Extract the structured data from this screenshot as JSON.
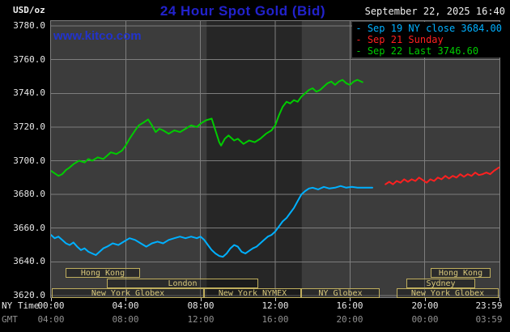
{
  "header": {
    "unit_label": "USD/oz",
    "title": "24 Hour Spot Gold (Bid)",
    "datetime": "September 22, 2025 16:40",
    "watermark": "www.kitco.com"
  },
  "legend": [
    {
      "label": "Sep 19 NY close 3684.00",
      "color": "#00b0ff"
    },
    {
      "label": "Sep 21 Sunday",
      "color": "#ff2020"
    },
    {
      "label": "Sep 22 Last 3746.60",
      "color": "#00cc00"
    }
  ],
  "axes": {
    "ny_label": "NY Time",
    "gmt_label": "GMT",
    "x_ticks": [
      {
        "hour": 0,
        "ny": "00:00",
        "gmt": "04:00"
      },
      {
        "hour": 4,
        "ny": "04:00",
        "gmt": "08:00"
      },
      {
        "hour": 8,
        "ny": "08:00",
        "gmt": "12:00"
      },
      {
        "hour": 12,
        "ny": "12:00",
        "gmt": "16:00"
      },
      {
        "hour": 16,
        "ny": "16:00",
        "gmt": "20:00"
      },
      {
        "hour": 20,
        "ny": "20:00",
        "gmt": "00:00"
      },
      {
        "hour": 23.983,
        "ny": "23:59",
        "gmt": "03:59"
      }
    ]
  },
  "sessions": [
    {
      "row": 1,
      "start": 0.8,
      "end": 4.8,
      "label": "Hong Kong"
    },
    {
      "row": 1,
      "start": 20.3,
      "end": 23.5,
      "label": "Hong Kong"
    },
    {
      "row": 2,
      "start": 3.0,
      "end": 11.1,
      "label": "London"
    },
    {
      "row": 2,
      "start": 19.0,
      "end": 22.7,
      "label": "Sydney"
    },
    {
      "row": 3,
      "start": 0.05,
      "end": 8.2,
      "label": "New York Globex"
    },
    {
      "row": 3,
      "start": 8.2,
      "end": 13.4,
      "label": "New York NYMEX"
    },
    {
      "row": 3,
      "start": 13.4,
      "end": 17.6,
      "label": "NY Globex"
    },
    {
      "row": 3,
      "start": 18.5,
      "end": 23.95,
      "label": "New York Globex"
    }
  ],
  "chart_data": {
    "type": "line",
    "title": "24 Hour Spot Gold (Bid)",
    "ylabel": "USD/oz",
    "xlabel": "NY Time (hours)",
    "ylim": [
      3620,
      3780
    ],
    "xlim": [
      0,
      24
    ],
    "y_ticks": [
      3780,
      3760,
      3740,
      3720,
      3700,
      3680,
      3660,
      3640,
      3620
    ],
    "nymex_band_hours": [
      8.33,
      13.42
    ],
    "grid": true,
    "legend_position": "top-right",
    "series": [
      {
        "name": "Sep 19 NY close",
        "color": "#00b0ff",
        "points": [
          [
            0,
            3656
          ],
          [
            0.2,
            3654
          ],
          [
            0.4,
            3655
          ],
          [
            0.6,
            3653
          ],
          [
            0.8,
            3651
          ],
          [
            1,
            3650
          ],
          [
            1.2,
            3651.5
          ],
          [
            1.4,
            3649
          ],
          [
            1.6,
            3647
          ],
          [
            1.8,
            3648
          ],
          [
            2,
            3646
          ],
          [
            2.2,
            3645
          ],
          [
            2.4,
            3644
          ],
          [
            2.6,
            3646
          ],
          [
            2.8,
            3648
          ],
          [
            3,
            3649
          ],
          [
            3.3,
            3651
          ],
          [
            3.6,
            3650
          ],
          [
            3.9,
            3652
          ],
          [
            4.2,
            3654
          ],
          [
            4.5,
            3653
          ],
          [
            4.8,
            3651
          ],
          [
            5.1,
            3649
          ],
          [
            5.4,
            3651
          ],
          [
            5.7,
            3652
          ],
          [
            6,
            3651
          ],
          [
            6.3,
            3653
          ],
          [
            6.6,
            3654
          ],
          [
            6.9,
            3655
          ],
          [
            7.2,
            3654
          ],
          [
            7.5,
            3655
          ],
          [
            7.8,
            3654
          ],
          [
            8,
            3655
          ],
          [
            8.2,
            3653
          ],
          [
            8.4,
            3650
          ],
          [
            8.6,
            3647
          ],
          [
            8.8,
            3645
          ],
          [
            9,
            3643.5
          ],
          [
            9.2,
            3643
          ],
          [
            9.4,
            3645
          ],
          [
            9.6,
            3648
          ],
          [
            9.8,
            3650
          ],
          [
            10,
            3649
          ],
          [
            10.2,
            3646
          ],
          [
            10.4,
            3645
          ],
          [
            10.6,
            3646.5
          ],
          [
            10.8,
            3648
          ],
          [
            11,
            3649
          ],
          [
            11.2,
            3651
          ],
          [
            11.4,
            3653
          ],
          [
            11.6,
            3655
          ],
          [
            11.8,
            3656
          ],
          [
            12,
            3658
          ],
          [
            12.2,
            3661
          ],
          [
            12.4,
            3664
          ],
          [
            12.6,
            3666
          ],
          [
            12.8,
            3669
          ],
          [
            13,
            3672
          ],
          [
            13.2,
            3676
          ],
          [
            13.4,
            3680
          ],
          [
            13.6,
            3682
          ],
          [
            13.8,
            3683.5
          ],
          [
            14,
            3684
          ],
          [
            14.3,
            3683
          ],
          [
            14.6,
            3684.5
          ],
          [
            14.9,
            3683.5
          ],
          [
            15.2,
            3684
          ],
          [
            15.5,
            3685
          ],
          [
            15.8,
            3684
          ],
          [
            16.1,
            3684.5
          ],
          [
            16.4,
            3684
          ],
          [
            16.7,
            3684
          ],
          [
            17.2,
            3684
          ]
        ]
      },
      {
        "name": "Sep 21 Sunday",
        "color": "#ff2020",
        "points": [
          [
            17.9,
            3686
          ],
          [
            18.1,
            3687.5
          ],
          [
            18.3,
            3686
          ],
          [
            18.5,
            3688
          ],
          [
            18.7,
            3687
          ],
          [
            18.9,
            3689
          ],
          [
            19.1,
            3687.5
          ],
          [
            19.3,
            3689
          ],
          [
            19.5,
            3688
          ],
          [
            19.7,
            3690
          ],
          [
            19.9,
            3688.5
          ],
          [
            20.1,
            3687
          ],
          [
            20.3,
            3689
          ],
          [
            20.5,
            3688
          ],
          [
            20.7,
            3690
          ],
          [
            20.9,
            3689
          ],
          [
            21.1,
            3691
          ],
          [
            21.3,
            3689.5
          ],
          [
            21.5,
            3691
          ],
          [
            21.7,
            3690
          ],
          [
            21.9,
            3692
          ],
          [
            22.1,
            3690.5
          ],
          [
            22.3,
            3692
          ],
          [
            22.5,
            3691
          ],
          [
            22.7,
            3693
          ],
          [
            22.9,
            3691.5
          ],
          [
            23.1,
            3692
          ],
          [
            23.3,
            3693
          ],
          [
            23.5,
            3692
          ],
          [
            23.7,
            3694
          ],
          [
            23.9,
            3695.5
          ],
          [
            23.98,
            3696
          ]
        ]
      },
      {
        "name": "Sep 22 Last",
        "color": "#00cc00",
        "points": [
          [
            0,
            3694
          ],
          [
            0.2,
            3692.5
          ],
          [
            0.4,
            3691
          ],
          [
            0.6,
            3692
          ],
          [
            0.8,
            3694.5
          ],
          [
            1,
            3696
          ],
          [
            1.2,
            3698
          ],
          [
            1.5,
            3700
          ],
          [
            1.8,
            3699
          ],
          [
            2,
            3701
          ],
          [
            2.2,
            3700
          ],
          [
            2.5,
            3702
          ],
          [
            2.8,
            3701
          ],
          [
            3,
            3703
          ],
          [
            3.2,
            3705
          ],
          [
            3.5,
            3704
          ],
          [
            3.8,
            3706
          ],
          [
            4,
            3709
          ],
          [
            4.2,
            3713
          ],
          [
            4.5,
            3718
          ],
          [
            4.7,
            3721
          ],
          [
            5,
            3723
          ],
          [
            5.2,
            3724.5
          ],
          [
            5.4,
            3721
          ],
          [
            5.6,
            3717
          ],
          [
            5.8,
            3719
          ],
          [
            6,
            3718
          ],
          [
            6.3,
            3716
          ],
          [
            6.6,
            3718
          ],
          [
            6.9,
            3717
          ],
          [
            7.2,
            3719
          ],
          [
            7.5,
            3721
          ],
          [
            7.8,
            3720
          ],
          [
            8,
            3722
          ],
          [
            8.3,
            3724
          ],
          [
            8.6,
            3725
          ],
          [
            8.8,
            3718
          ],
          [
            9,
            3711
          ],
          [
            9.1,
            3709
          ],
          [
            9.3,
            3713
          ],
          [
            9.5,
            3715
          ],
          [
            9.8,
            3712
          ],
          [
            10,
            3713
          ],
          [
            10.3,
            3710
          ],
          [
            10.6,
            3712
          ],
          [
            10.9,
            3711
          ],
          [
            11.2,
            3713
          ],
          [
            11.5,
            3716
          ],
          [
            11.8,
            3718
          ],
          [
            12,
            3721
          ],
          [
            12.2,
            3727
          ],
          [
            12.4,
            3732
          ],
          [
            12.6,
            3735
          ],
          [
            12.8,
            3734
          ],
          [
            13,
            3736
          ],
          [
            13.2,
            3735
          ],
          [
            13.4,
            3738
          ],
          [
            13.6,
            3740
          ],
          [
            13.8,
            3742
          ],
          [
            14,
            3743
          ],
          [
            14.2,
            3741
          ],
          [
            14.4,
            3742
          ],
          [
            14.6,
            3744
          ],
          [
            14.8,
            3746
          ],
          [
            15,
            3747
          ],
          [
            15.2,
            3745
          ],
          [
            15.4,
            3747
          ],
          [
            15.6,
            3748
          ],
          [
            15.8,
            3746
          ],
          [
            16,
            3745
          ],
          [
            16.2,
            3747
          ],
          [
            16.4,
            3748
          ],
          [
            16.67,
            3746.6
          ]
        ]
      }
    ]
  }
}
